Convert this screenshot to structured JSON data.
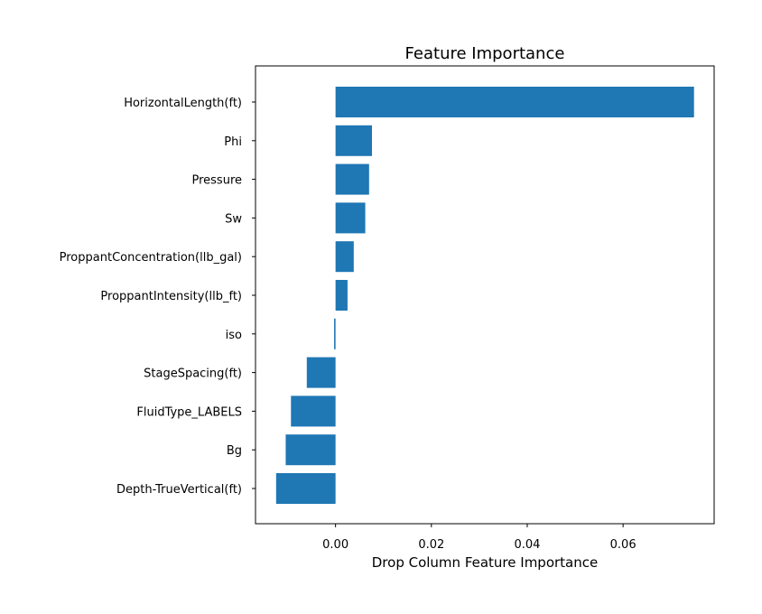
{
  "chart_data": {
    "type": "bar",
    "orientation": "horizontal",
    "title": "Feature Importance",
    "xlabel": "Drop Column Feature Importance",
    "ylabel": "",
    "categories": [
      "HorizontalLength(ft)",
      "Phi",
      "Pressure",
      "Sw",
      "ProppantConcentration(llb_gal)",
      "ProppantIntensity(llb_ft)",
      "iso",
      "StageSpacing(ft)",
      "FluidType_LABELS",
      "Bg",
      "Depth-TrueVertical(ft)"
    ],
    "values": [
      0.0748,
      0.0076,
      0.007,
      0.0062,
      0.0038,
      0.0025,
      -0.0003,
      -0.006,
      -0.0093,
      -0.0104,
      -0.0124
    ],
    "xlim": [
      -0.0167,
      0.079
    ],
    "xticks": [
      0.0,
      0.02,
      0.04,
      0.06
    ],
    "xtick_labels": [
      "0.00",
      "0.02",
      "0.04",
      "0.06"
    ],
    "grid": false,
    "legend": "none",
    "bar_color": "#1f77b4"
  }
}
